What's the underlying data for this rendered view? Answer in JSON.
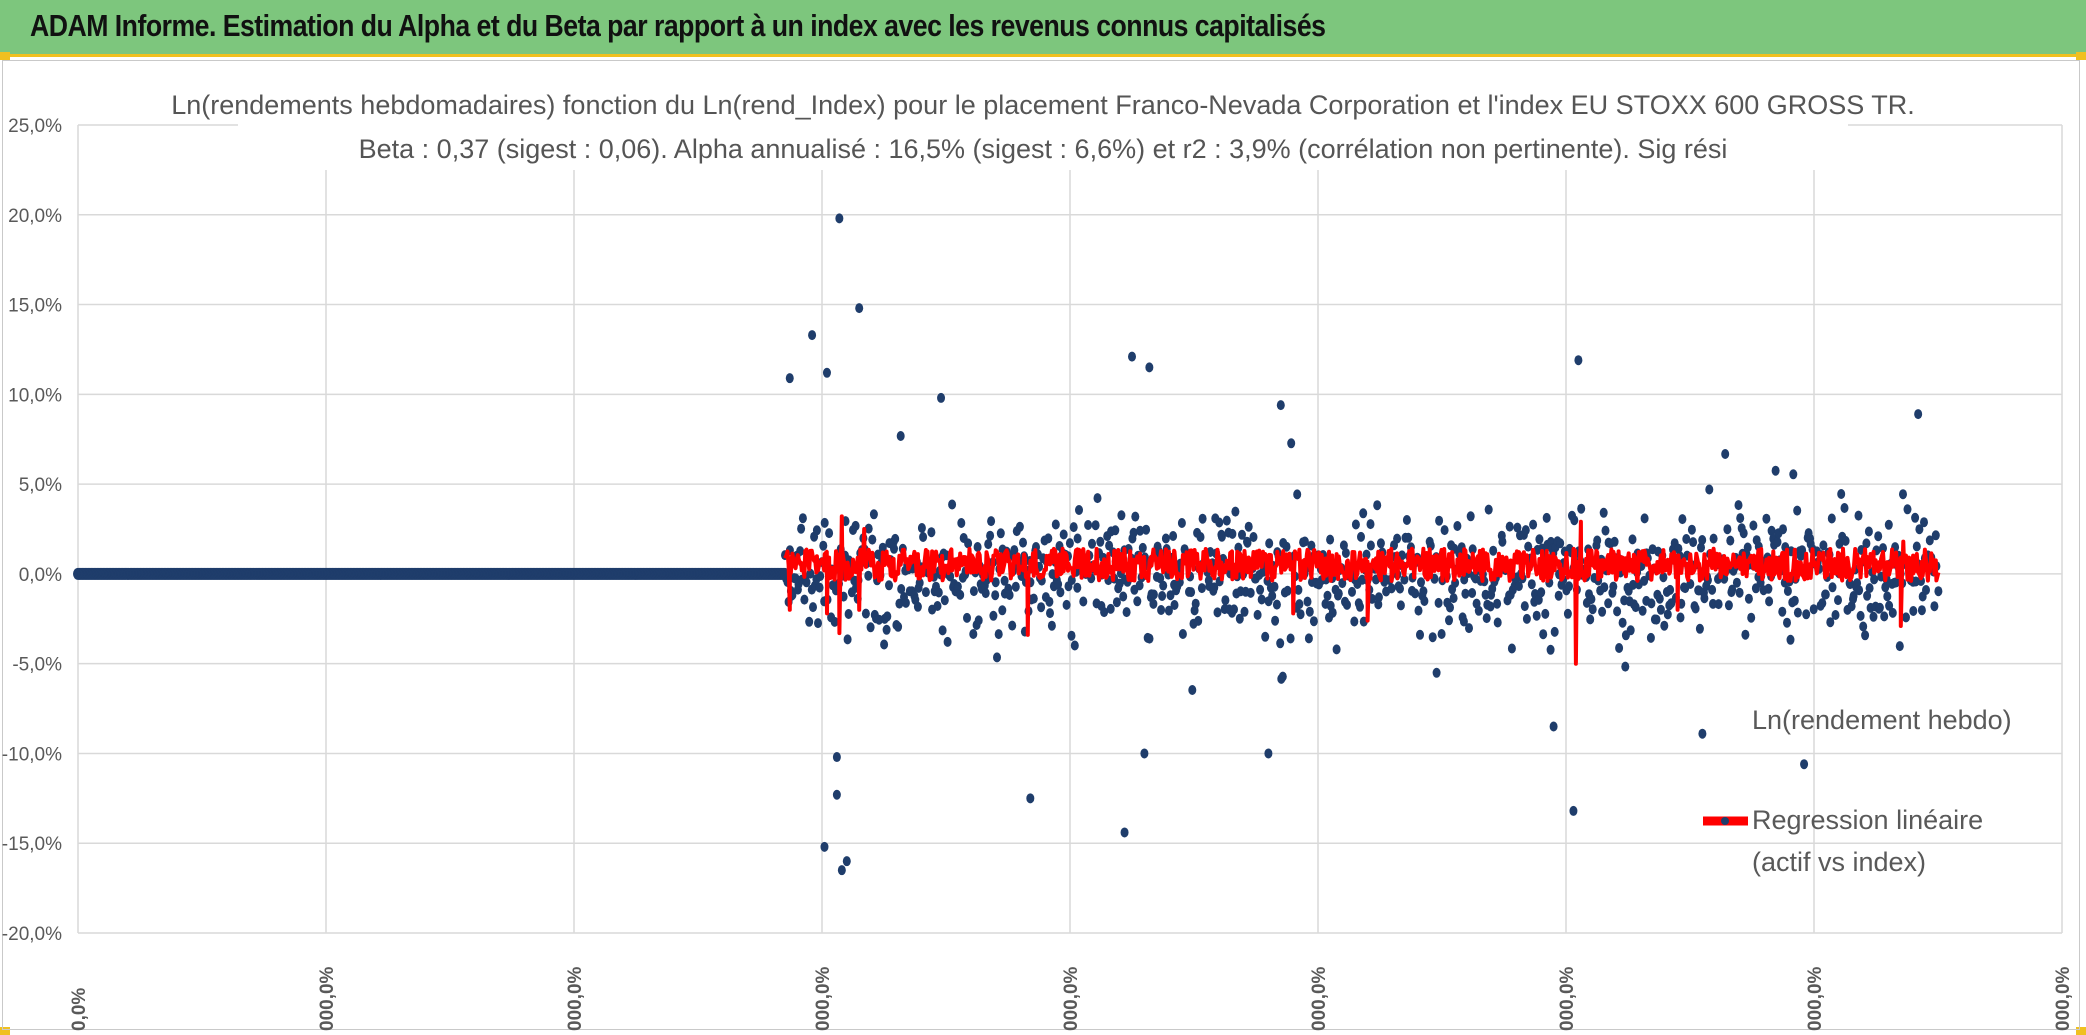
{
  "banner": {
    "title": "ADAM Informe. Estimation du Alpha et du Beta par rapport à un index avec les revenus connus capitalisés"
  },
  "colors": {
    "banner_bg": "#7dc67d",
    "accent": "#f0c020",
    "points": "#1f3d6b",
    "regression": "#ff0000",
    "grid": "#d9d9d9"
  },
  "chart_data": {
    "type": "scatter",
    "title": "Ln(rendements hebdomadaires) fonction du Ln(rend_Index) pour le placement Franco-Nevada Corporation et l'index EU STOXX 600 GROSS TR.",
    "subtitle": "Beta : 0,37 (sigest : 0,06). Alpha annualisé : 16,5% (sigest : 6,6%) et r2 : 3,9% (corrélation non pertinente). Sig rési",
    "ylabel": "",
    "xlabel": "",
    "ylim": [
      -20,
      25
    ],
    "y_ticks": [
      "25,0%",
      "20,0%",
      "15,0%",
      "10,0%",
      "5,0%",
      "0,0%",
      "-5,0%",
      "-10,0%",
      "-15,0%",
      "-20,0%"
    ],
    "x_ticks": [
      "0,0%",
      "000,0%",
      "000,0%",
      "000,0%",
      "000,0%",
      "000,0%",
      "000,0%",
      "000,0%",
      "000,0%"
    ],
    "legend": [
      "Ln(rendement hebdo)",
      "Regression linéaire\n(actif vs index)"
    ],
    "series": [
      {
        "name": "Ln(rendement hebdo)",
        "kind": "scatter",
        "note": "zero returns before data start; approx 1000 weekly points afterwards, mostly within -5% to +5%",
        "flat_zero_x_range": [
          0,
          2.85
        ],
        "dense_x_range": [
          2.85,
          7.5
        ],
        "typical_range": [
          -5,
          5
        ],
        "outliers": [
          {
            "x": 3.07,
            "y": 19.8
          },
          {
            "x": 3.15,
            "y": 14.8
          },
          {
            "x": 2.96,
            "y": 13.3
          },
          {
            "x": 3.02,
            "y": 11.2
          },
          {
            "x": 2.87,
            "y": 10.9
          },
          {
            "x": 4.25,
            "y": 12.1
          },
          {
            "x": 4.32,
            "y": 11.5
          },
          {
            "x": 6.05,
            "y": 11.9
          },
          {
            "x": 3.48,
            "y": 9.8
          },
          {
            "x": 4.85,
            "y": 9.4
          },
          {
            "x": 7.42,
            "y": 8.9
          },
          {
            "x": 3.08,
            "y": -16.5
          },
          {
            "x": 3.1,
            "y": -16.0
          },
          {
            "x": 3.01,
            "y": -15.2
          },
          {
            "x": 4.22,
            "y": -14.4
          },
          {
            "x": 3.06,
            "y": -12.3
          },
          {
            "x": 3.84,
            "y": -12.5
          },
          {
            "x": 6.03,
            "y": -13.2
          },
          {
            "x": 3.06,
            "y": -10.2
          },
          {
            "x": 4.3,
            "y": -10.0
          },
          {
            "x": 4.8,
            "y": -10.0
          },
          {
            "x": 6.96,
            "y": -10.6
          },
          {
            "x": 6.55,
            "y": -8.9
          },
          {
            "x": 5.95,
            "y": -8.5
          }
        ]
      },
      {
        "name": "Regression linéaire (actif vs index)",
        "kind": "line",
        "x_range": [
          2.85,
          7.5
        ],
        "beta": 0.37,
        "level": 0.5,
        "spikes": [
          {
            "x": 3.08,
            "y": 3.2
          },
          {
            "x": 3.07,
            "y": -3.3
          },
          {
            "x": 3.17,
            "y": 2.5
          },
          {
            "x": 3.15,
            "y": -2.0
          },
          {
            "x": 3.02,
            "y": -2.2
          },
          {
            "x": 2.87,
            "y": -2.0
          },
          {
            "x": 3.83,
            "y": -3.4
          },
          {
            "x": 5.2,
            "y": -2.6
          },
          {
            "x": 6.04,
            "y": -5.0
          },
          {
            "x": 6.06,
            "y": 2.9
          },
          {
            "x": 6.45,
            "y": -2.0
          },
          {
            "x": 7.35,
            "y": -2.9
          },
          {
            "x": 7.36,
            "y": 1.8
          },
          {
            "x": 4.9,
            "y": -2.2
          }
        ]
      }
    ]
  }
}
